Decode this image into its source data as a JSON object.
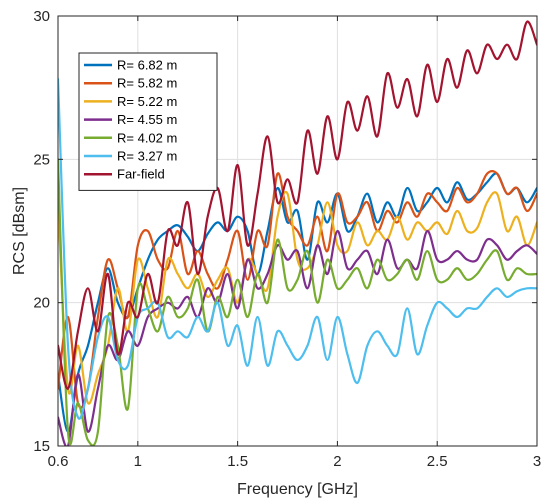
{
  "chart_data": {
    "type": "line",
    "xlabel": "Frequency [GHz]",
    "ylabel": "RCS [dBsm]",
    "xlim": [
      0.6,
      3.0
    ],
    "ylim": [
      15,
      30
    ],
    "xticks": [
      0.6,
      1,
      1.5,
      2,
      2.5,
      3
    ],
    "xtick_labels": [
      "0.6",
      "1",
      "1.5",
      "2",
      "2.5",
      "3"
    ],
    "yticks": [
      15,
      20,
      25,
      30
    ],
    "ytick_labels": [
      "15",
      "20",
      "25",
      "30"
    ],
    "grid": true,
    "legend_position": "top-left",
    "series": [
      {
        "name": "R= 6.82 m",
        "color": "#0072BD",
        "x": [
          0.6,
          0.65,
          0.7,
          0.75,
          0.8,
          0.85,
          0.9,
          0.95,
          1.0,
          1.05,
          1.1,
          1.15,
          1.2,
          1.25,
          1.3,
          1.35,
          1.4,
          1.45,
          1.5,
          1.55,
          1.6,
          1.65,
          1.7,
          1.75,
          1.8,
          1.85,
          1.9,
          1.95,
          2.0,
          2.05,
          2.1,
          2.15,
          2.2,
          2.25,
          2.3,
          2.35,
          2.4,
          2.45,
          2.5,
          2.55,
          2.6,
          2.65,
          2.7,
          2.75,
          2.8,
          2.85,
          2.9,
          2.95,
          3.0
        ],
        "y": [
          17.5,
          15.5,
          17.5,
          18.5,
          20.0,
          21.2,
          20.0,
          19.5,
          20.5,
          21.5,
          22.2,
          22.5,
          22.7,
          22.3,
          21.8,
          22.4,
          22.8,
          22.5,
          23.0,
          22.5,
          21.0,
          22.5,
          24.0,
          22.8,
          23.2,
          21.5,
          23.5,
          22.8,
          23.8,
          22.5,
          23.0,
          23.8,
          22.8,
          23.5,
          23.0,
          24.0,
          23.2,
          23.5,
          24.0,
          23.5,
          24.2,
          23.6,
          23.8,
          24.2,
          24.5,
          23.8,
          24.0,
          23.5,
          24.0
        ]
      },
      {
        "name": "R= 5.82 m",
        "color": "#D95319",
        "x": [
          0.6,
          0.65,
          0.7,
          0.75,
          0.8,
          0.85,
          0.9,
          0.95,
          1.0,
          1.05,
          1.1,
          1.15,
          1.2,
          1.25,
          1.3,
          1.35,
          1.4,
          1.45,
          1.5,
          1.55,
          1.6,
          1.65,
          1.7,
          1.75,
          1.8,
          1.85,
          1.9,
          1.95,
          2.0,
          2.05,
          2.1,
          2.15,
          2.2,
          2.25,
          2.3,
          2.35,
          2.4,
          2.45,
          2.5,
          2.55,
          2.6,
          2.65,
          2.7,
          2.75,
          2.8,
          2.85,
          2.9,
          2.95,
          3.0
        ],
        "y": [
          17.0,
          19.5,
          16.5,
          17.0,
          19.5,
          21.5,
          20.5,
          19.5,
          22.0,
          22.5,
          21.5,
          21.2,
          22.5,
          21.0,
          21.8,
          21.0,
          20.5,
          21.5,
          22.5,
          20.8,
          22.5,
          22.0,
          24.5,
          23.0,
          22.5,
          22.0,
          23.0,
          21.8,
          23.8,
          22.8,
          23.0,
          23.5,
          22.5,
          23.2,
          22.8,
          23.5,
          23.0,
          23.8,
          23.5,
          23.2,
          24.0,
          23.5,
          23.8,
          24.5,
          24.5,
          23.8,
          24.0,
          23.2,
          23.8
        ]
      },
      {
        "name": "R= 5.22 m",
        "color": "#EDB120",
        "x": [
          0.6,
          0.65,
          0.7,
          0.75,
          0.8,
          0.85,
          0.9,
          0.95,
          1.0,
          1.05,
          1.1,
          1.15,
          1.2,
          1.25,
          1.3,
          1.35,
          1.4,
          1.45,
          1.5,
          1.55,
          1.6,
          1.65,
          1.7,
          1.75,
          1.8,
          1.85,
          1.9,
          1.95,
          2.0,
          2.05,
          2.1,
          2.15,
          2.2,
          2.25,
          2.3,
          2.35,
          2.4,
          2.45,
          2.5,
          2.55,
          2.6,
          2.65,
          2.7,
          2.75,
          2.8,
          2.85,
          2.9,
          2.95,
          3.0
        ],
        "y": [
          23.5,
          17.0,
          18.5,
          16.5,
          17.5,
          18.5,
          20.5,
          19.0,
          21.5,
          20.5,
          19.5,
          21.5,
          21.0,
          20.5,
          21.0,
          20.2,
          20.8,
          21.2,
          20.0,
          21.5,
          21.0,
          20.5,
          23.0,
          23.8,
          21.5,
          21.2,
          22.0,
          23.5,
          22.0,
          21.8,
          22.8,
          22.0,
          22.5,
          22.2,
          23.0,
          22.2,
          22.8,
          22.5,
          22.8,
          22.4,
          23.2,
          22.5,
          22.6,
          23.5,
          23.8,
          22.5,
          23.0,
          22.0,
          22.8
        ]
      },
      {
        "name": "R= 4.55 m",
        "color": "#7E2F8E",
        "x": [
          0.6,
          0.65,
          0.7,
          0.75,
          0.8,
          0.85,
          0.9,
          0.95,
          1.0,
          1.05,
          1.1,
          1.15,
          1.2,
          1.25,
          1.3,
          1.35,
          1.4,
          1.45,
          1.5,
          1.55,
          1.6,
          1.65,
          1.7,
          1.75,
          1.8,
          1.85,
          1.9,
          1.95,
          2.0,
          2.05,
          2.1,
          2.15,
          2.2,
          2.25,
          2.3,
          2.35,
          2.4,
          2.45,
          2.5,
          2.55,
          2.6,
          2.65,
          2.7,
          2.75,
          2.8,
          2.85,
          2.9,
          2.95,
          3.0
        ],
        "y": [
          16.0,
          15.0,
          17.5,
          15.5,
          17.0,
          18.5,
          18.0,
          19.0,
          18.5,
          19.5,
          19.8,
          20.0,
          19.8,
          20.2,
          19.5,
          20.5,
          20.0,
          21.0,
          19.8,
          21.5,
          20.5,
          21.0,
          22.0,
          21.5,
          21.8,
          20.5,
          22.0,
          21.0,
          22.5,
          21.2,
          21.5,
          21.8,
          21.0,
          22.2,
          21.2,
          21.5,
          21.2,
          22.5,
          21.5,
          21.5,
          21.8,
          21.5,
          21.5,
          22.2,
          22.0,
          21.5,
          21.8,
          22.0,
          21.7
        ]
      },
      {
        "name": "R= 4.02 m",
        "color": "#77AC30",
        "x": [
          0.6,
          0.65,
          0.7,
          0.75,
          0.8,
          0.85,
          0.9,
          0.95,
          1.0,
          1.05,
          1.1,
          1.15,
          1.2,
          1.25,
          1.3,
          1.35,
          1.4,
          1.45,
          1.5,
          1.55,
          1.6,
          1.65,
          1.7,
          1.75,
          1.8,
          1.85,
          1.9,
          1.95,
          2.0,
          2.05,
          2.1,
          2.15,
          2.2,
          2.25,
          2.3,
          2.35,
          2.4,
          2.45,
          2.5,
          2.55,
          2.6,
          2.65,
          2.7,
          2.75,
          2.8,
          2.85,
          2.9,
          2.95,
          3.0
        ],
        "y": [
          25.0,
          15.5,
          16.5,
          15.2,
          15.5,
          19.5,
          18.5,
          16.3,
          20.5,
          19.8,
          19.0,
          20.2,
          19.5,
          19.8,
          20.8,
          19.0,
          20.2,
          19.5,
          20.8,
          19.5,
          21.0,
          20.0,
          22.2,
          20.5,
          20.8,
          21.8,
          20.0,
          21.5,
          20.5,
          20.8,
          21.2,
          20.5,
          21.5,
          20.8,
          21.0,
          21.5,
          20.8,
          21.8,
          20.8,
          20.8,
          21.2,
          20.8,
          21.0,
          21.5,
          21.8,
          20.8,
          21.2,
          21.0,
          21.0
        ]
      },
      {
        "name": "R= 3.27 m",
        "color": "#4DBEEE",
        "x": [
          0.6,
          0.65,
          0.7,
          0.75,
          0.8,
          0.85,
          0.9,
          0.95,
          1.0,
          1.05,
          1.1,
          1.15,
          1.2,
          1.25,
          1.3,
          1.35,
          1.4,
          1.45,
          1.5,
          1.55,
          1.6,
          1.65,
          1.7,
          1.75,
          1.8,
          1.85,
          1.9,
          1.95,
          2.0,
          2.05,
          2.1,
          2.15,
          2.2,
          2.25,
          2.3,
          2.35,
          2.4,
          2.45,
          2.5,
          2.55,
          2.6,
          2.65,
          2.7,
          2.75,
          2.8,
          2.85,
          2.9,
          2.95,
          3.0
        ],
        "y": [
          27.8,
          18.5,
          16.0,
          17.0,
          18.8,
          19.5,
          18.0,
          17.8,
          19.5,
          19.8,
          20.0,
          18.8,
          19.0,
          18.8,
          19.5,
          19.0,
          20.0,
          18.5,
          19.2,
          17.8,
          19.5,
          17.8,
          19.0,
          18.5,
          18.0,
          18.5,
          19.5,
          18.0,
          19.5,
          18.2,
          17.2,
          18.5,
          19.0,
          18.5,
          18.2,
          19.8,
          18.2,
          19.2,
          20.0,
          19.8,
          19.5,
          19.8,
          19.8,
          20.2,
          20.5,
          20.2,
          20.4,
          20.5,
          20.5
        ]
      },
      {
        "name": "Far-field",
        "color": "#A2142F",
        "x": [
          0.6,
          0.65,
          0.7,
          0.75,
          0.8,
          0.85,
          0.9,
          0.95,
          1.0,
          1.05,
          1.1,
          1.15,
          1.2,
          1.25,
          1.3,
          1.35,
          1.4,
          1.45,
          1.5,
          1.55,
          1.6,
          1.65,
          1.7,
          1.75,
          1.8,
          1.85,
          1.9,
          1.95,
          2.0,
          2.05,
          2.1,
          2.15,
          2.2,
          2.25,
          2.3,
          2.35,
          2.4,
          2.45,
          2.5,
          2.55,
          2.6,
          2.65,
          2.7,
          2.75,
          2.8,
          2.85,
          2.9,
          2.95,
          3.0
        ],
        "y": [
          18.5,
          17.0,
          19.0,
          20.5,
          19.0,
          21.0,
          18.2,
          20.0,
          19.5,
          21.0,
          20.0,
          22.5,
          22.0,
          23.5,
          21.0,
          23.0,
          24.0,
          22.5,
          24.8,
          22.0,
          23.8,
          25.8,
          23.5,
          24.3,
          23.5,
          26.0,
          24.5,
          26.5,
          25.0,
          27.0,
          26.0,
          27.2,
          25.8,
          28.0,
          26.8,
          27.8,
          26.5,
          28.3,
          27.0,
          28.5,
          27.5,
          28.8,
          28.0,
          29.0,
          28.5,
          29.0,
          28.5,
          29.8,
          29.0
        ]
      }
    ]
  }
}
